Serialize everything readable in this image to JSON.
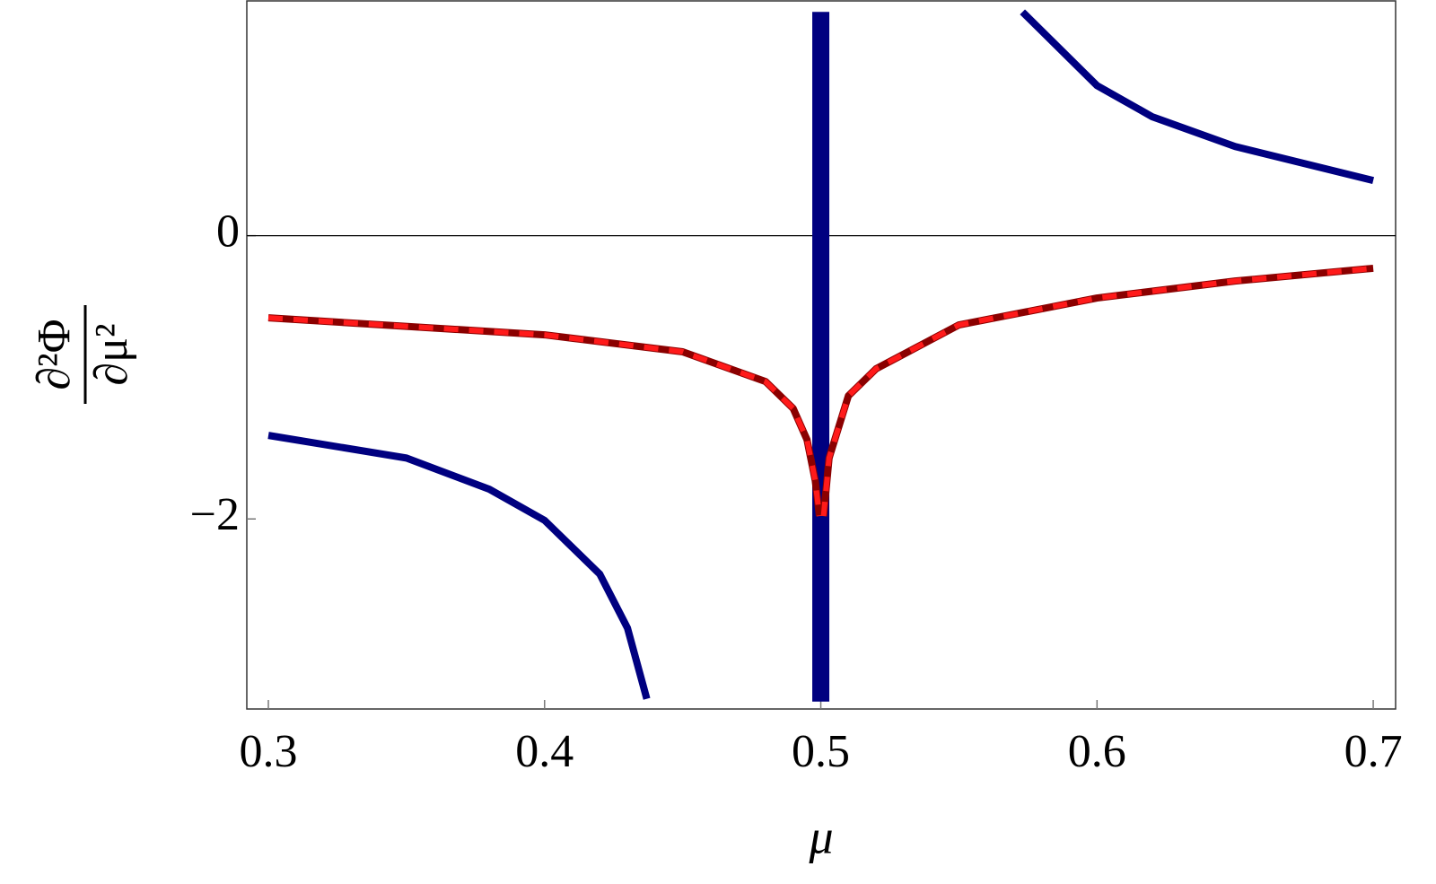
{
  "chart_data": {
    "type": "line",
    "x_label": "μ",
    "y_label_numerator": "∂²Φ",
    "y_label_denominator": "∂μ²",
    "xlim": [
      0.2922,
      0.7081
    ],
    "ylim": [
      -3.342,
      1.658
    ],
    "xticks": [
      0.3,
      0.4,
      0.5,
      0.6,
      0.7
    ],
    "yticks": [
      {
        "value": -2,
        "label": "−2"
      },
      0
    ],
    "zero_line": true,
    "series": [
      {
        "color": "#000080",
        "line_width": 8,
        "dash": false,
        "x": [
          0.3,
          0.35,
          0.38,
          0.4,
          0.42,
          0.43,
          0.437,
          null,
          0.573,
          0.6,
          0.62,
          0.65,
          0.7
        ],
        "values": [
          -1.41,
          -1.57,
          -1.79,
          -2.01,
          -2.39,
          -2.77,
          -3.27,
          null,
          1.58,
          1.06,
          0.84,
          0.63,
          0.39
        ]
      },
      {
        "color": "#000080",
        "line_width": 19,
        "dash": false,
        "x": [
          0.5,
          0.5
        ],
        "values": [
          -3.29,
          1.58
        ]
      },
      {
        "color": "#8b0000",
        "line_width": 8,
        "dash": false,
        "x": [
          0.3,
          0.4,
          0.45,
          0.48,
          0.49,
          0.495,
          0.498,
          0.4995,
          null,
          0.501,
          0.503,
          0.51,
          0.52,
          0.55,
          0.6,
          0.65,
          0.7
        ],
        "values": [
          -0.58,
          -0.7,
          -0.82,
          -1.03,
          -1.22,
          -1.44,
          -1.73,
          -1.98,
          null,
          -1.98,
          -1.57,
          -1.13,
          -0.94,
          -0.63,
          -0.44,
          -0.32,
          -0.23
        ]
      },
      {
        "color": "#ff1a1a",
        "line_width": 6,
        "dash": true,
        "x": [
          0.3,
          0.4,
          0.45,
          0.48,
          0.49,
          0.495,
          0.498,
          0.4995,
          null,
          0.501,
          0.503,
          0.51,
          0.52,
          0.55,
          0.6,
          0.65,
          0.7
        ],
        "values": [
          -0.58,
          -0.7,
          -0.82,
          -1.03,
          -1.22,
          -1.44,
          -1.73,
          -1.98,
          null,
          -1.98,
          -1.57,
          -1.13,
          -0.94,
          -0.63,
          -0.44,
          -0.32,
          -0.23
        ]
      }
    ]
  }
}
